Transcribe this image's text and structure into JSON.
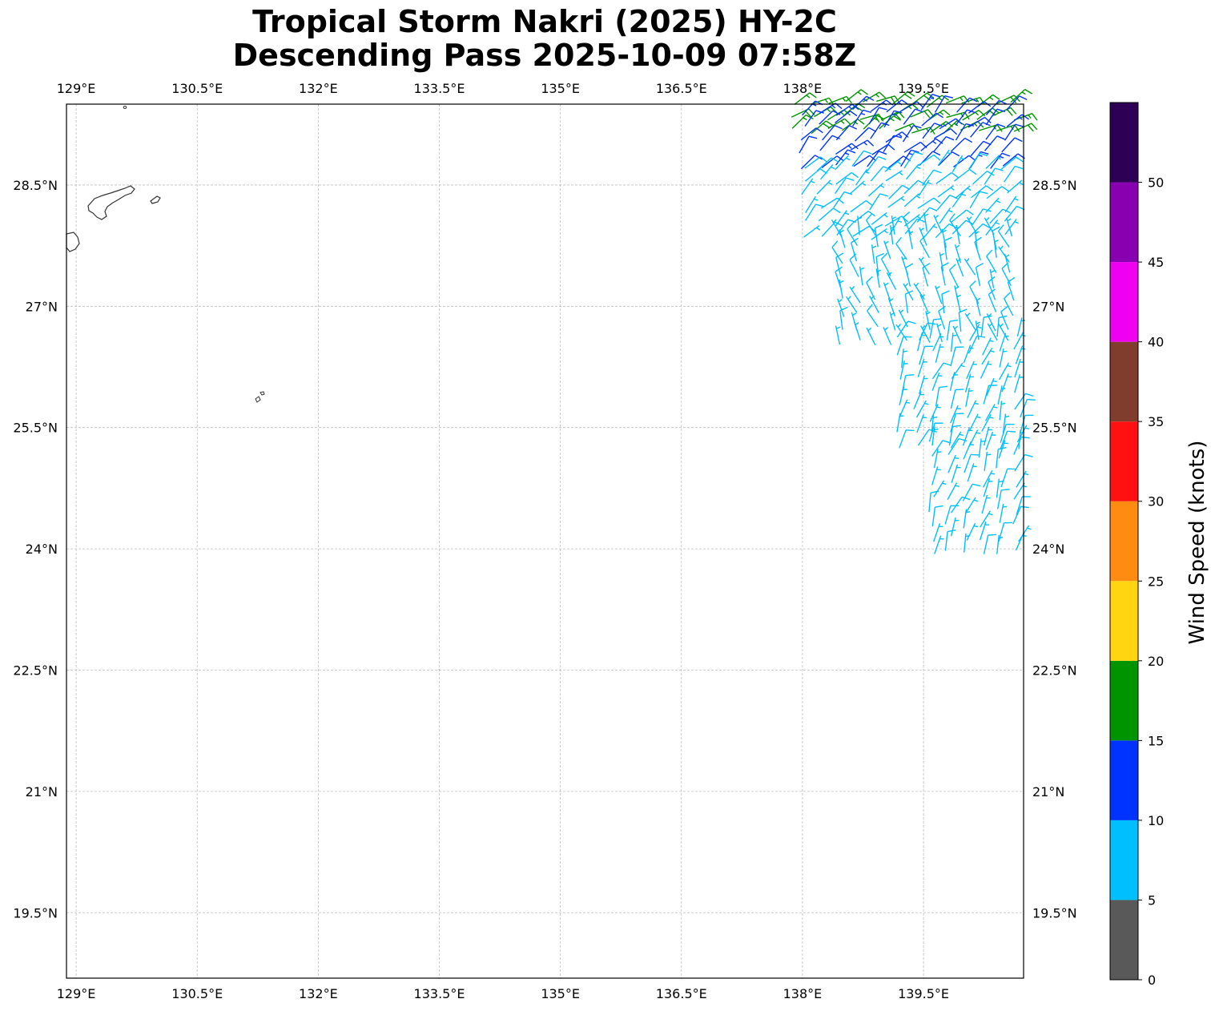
{
  "title": {
    "line1": "Tropical Storm Nakri (2025) HY-2C",
    "line2": "Descending Pass 2025-10-09 07:58Z"
  },
  "map": {
    "lon_range": [
      128.88,
      140.74
    ],
    "lat_range": [
      18.69,
      29.5
    ],
    "lon_ticks": [
      {
        "value": 129.0,
        "label": "129°E"
      },
      {
        "value": 130.5,
        "label": "130.5°E"
      },
      {
        "value": 132.0,
        "label": "132°E"
      },
      {
        "value": 133.5,
        "label": "133.5°E"
      },
      {
        "value": 135.0,
        "label": "135°E"
      },
      {
        "value": 136.5,
        "label": "136.5°E"
      },
      {
        "value": 138.0,
        "label": "138°E"
      },
      {
        "value": 139.5,
        "label": "139.5°E"
      }
    ],
    "lat_ticks": [
      {
        "value": 28.5,
        "label": "28.5°N"
      },
      {
        "value": 27.0,
        "label": "27°N"
      },
      {
        "value": 25.5,
        "label": "25.5°N"
      },
      {
        "value": 24.0,
        "label": "24°N"
      },
      {
        "value": 22.5,
        "label": "22.5°N"
      },
      {
        "value": 21.0,
        "label": "21°N"
      },
      {
        "value": 19.5,
        "label": "19.5°N"
      }
    ],
    "gridlines": true,
    "land_color": "#ffffff",
    "coast_color": "#333333"
  },
  "colorbar": {
    "label": "Wind Speed (knots)",
    "bins": [
      {
        "from": 0,
        "to": 5,
        "color": "#595959"
      },
      {
        "from": 5,
        "to": 10,
        "color": "#00bfff"
      },
      {
        "from": 10,
        "to": 15,
        "color": "#0033ff"
      },
      {
        "from": 15,
        "to": 20,
        "color": "#009400"
      },
      {
        "from": 20,
        "to": 25,
        "color": "#ffd511"
      },
      {
        "from": 25,
        "to": 30,
        "color": "#ff8c11"
      },
      {
        "from": 30,
        "to": 35,
        "color": "#ff1111"
      },
      {
        "from": 35,
        "to": 40,
        "color": "#803c2c"
      },
      {
        "from": 40,
        "to": 45,
        "color": "#f000f0"
      },
      {
        "from": 45,
        "to": 50,
        "color": "#8800b0"
      },
      {
        "from": 50,
        "to": 55,
        "color": "#2d0055"
      }
    ],
    "ticks": [
      "0",
      "5",
      "10",
      "15",
      "20",
      "25",
      "30",
      "35",
      "40",
      "45",
      "50"
    ]
  },
  "chart_data": {
    "type": "wind_barbs",
    "units": "knots",
    "swath": [
      {
        "lat_from": 29.5,
        "lat_to": 29.1,
        "lon_from": 137.9,
        "lon_to": 140.7,
        "speed": 17,
        "dir": 60
      },
      {
        "lat_from": 29.4,
        "lat_to": 28.6,
        "lon_from": 138.0,
        "lon_to": 140.7,
        "speed": 12,
        "dir": 45
      },
      {
        "lat_from": 28.7,
        "lat_to": 27.8,
        "lon_from": 138.0,
        "lon_to": 140.7,
        "speed": 8,
        "dir": 45
      },
      {
        "lat_from": 27.9,
        "lat_to": 26.5,
        "lon_from": 138.5,
        "lon_to": 140.7,
        "speed": 7,
        "dir": 340
      },
      {
        "lat_from": 26.6,
        "lat_to": 25.2,
        "lon_from": 139.2,
        "lon_to": 140.7,
        "speed": 7,
        "dir": 20
      },
      {
        "lat_from": 25.3,
        "lat_to": 23.9,
        "lon_from": 139.6,
        "lon_to": 140.7,
        "speed": 7,
        "dir": 20
      }
    ]
  }
}
